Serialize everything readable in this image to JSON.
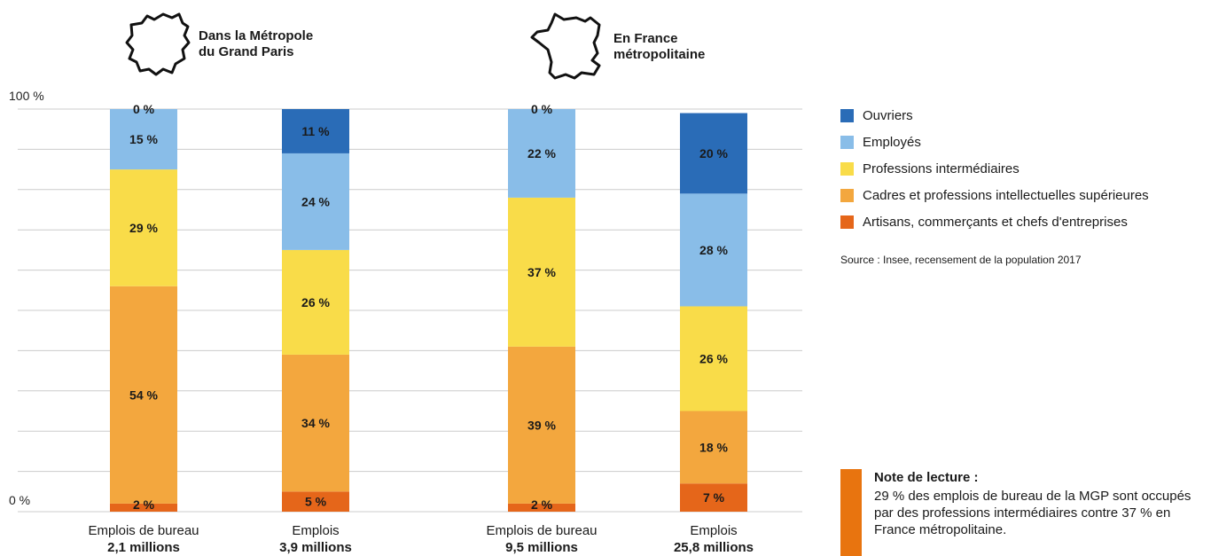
{
  "groups": [
    {
      "title_line1": "Dans la Métropole",
      "title_line2": "du Grand Paris"
    },
    {
      "title_line1": "En France",
      "title_line2": "métropolitaine"
    }
  ],
  "colors": {
    "ouvriers": "#2a6cb7",
    "employes": "#89bde8",
    "professions_intermediaires": "#f9dc49",
    "cadres": "#f3a73e",
    "artisans": "#e5661a",
    "gridline": "#cccccc",
    "note_bar": "#e8740f"
  },
  "chart_data": {
    "type": "bar",
    "stacked": true,
    "categories": [
      {
        "line1": "Emplois de bureau",
        "line2": "2,1 millions"
      },
      {
        "line1": "Emplois",
        "line2": "3,9 millions"
      },
      {
        "line1": "Emplois de bureau",
        "line2": "9,5 millions"
      },
      {
        "line1": "Emplois",
        "line2": "25,8 millions"
      }
    ],
    "series": [
      {
        "name": "Artisans, commerçants et chefs d'entreprises",
        "color_key": "artisans",
        "values": [
          2,
          5,
          2,
          7
        ],
        "labels": [
          "2 %",
          "5 %",
          "2 %",
          "7 %"
        ]
      },
      {
        "name": "Cadres et professions intellectuelles supérieures",
        "color_key": "cadres",
        "values": [
          54,
          34,
          39,
          18
        ],
        "labels": [
          "54 %",
          "34 %",
          "39 %",
          "18 %"
        ]
      },
      {
        "name": "Professions intermédiaires",
        "color_key": "professions_intermediaires",
        "values": [
          29,
          26,
          37,
          26
        ],
        "labels": [
          "29 %",
          "26 %",
          "37 %",
          "26 %"
        ]
      },
      {
        "name": "Employés",
        "color_key": "employes",
        "values": [
          15,
          24,
          22,
          28
        ],
        "labels": [
          "15 %",
          "24 %",
          "22 %",
          "28 %"
        ]
      },
      {
        "name": "Ouvriers",
        "color_key": "ouvriers",
        "values": [
          0,
          11,
          0,
          20
        ],
        "labels": [
          "0 %",
          "11 %",
          "0 %",
          "20 %"
        ]
      }
    ],
    "ylim": [
      0,
      100
    ],
    "y_tick_labels": {
      "top": "100 %",
      "bottom": "0 %"
    },
    "grid": true,
    "legend_order": [
      "Ouvriers",
      "Employés",
      "Professions intermédiaires",
      "Cadres et professions intellectuelles supérieures",
      "Artisans, commerçants et chefs d'entreprises"
    ],
    "legend_position": "right"
  },
  "source": "Source : Insee, recensement de la population 2017",
  "note": {
    "title": "Note de lecture :",
    "text": "29 % des emplois de bureau de la MGP sont occupés par des professions intermédiaires contre 37 % en France métropolitaine."
  }
}
